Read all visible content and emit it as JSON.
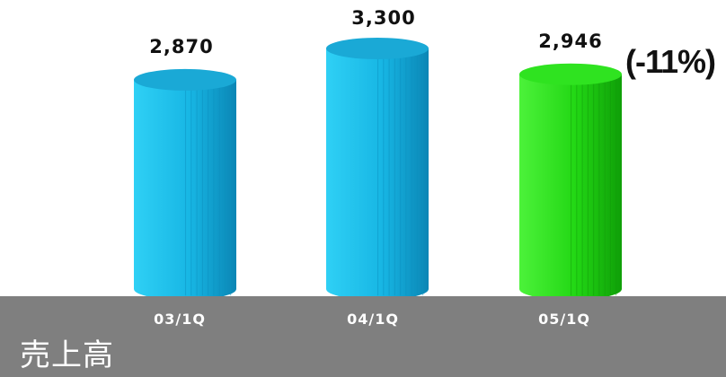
{
  "chart_data": {
    "type": "bar",
    "shape": "cylinder",
    "title": "売上高",
    "categories": [
      "03/1Q",
      "04/1Q",
      "05/1Q"
    ],
    "values": [
      2870,
      3300,
      2946
    ],
    "value_labels": [
      "2,870",
      "3,300",
      "2,946"
    ],
    "annotation": "(-11%)",
    "ylim": [
      0,
      3300
    ],
    "grid": false,
    "colors": [
      "#19b8e6",
      "#19b8e6",
      "#22dd14"
    ]
  }
}
